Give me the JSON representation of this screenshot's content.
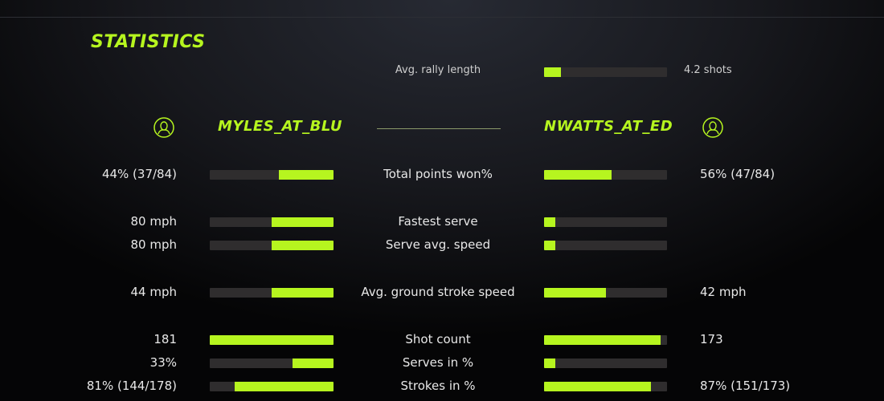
{
  "title": "STATISTICS",
  "accent_color": "#b6f51f",
  "rally": {
    "label": "Avg. rally length",
    "value": "4.2 shots",
    "fill": 0.14
  },
  "players": {
    "left": {
      "name": "MYLES_AT_BLU",
      "icon": "user-icon"
    },
    "right": {
      "name": "NWATTS_AT_ED",
      "icon": "user-icon"
    }
  },
  "stats": [
    {
      "label": "Total points won%",
      "left_value": "44% (37/84)",
      "right_value": "56% (47/84)",
      "left_fill": 0.44,
      "right_fill": 0.55
    },
    {
      "label": "Fastest serve",
      "left_value": "80 mph",
      "right_value": "",
      "left_fill": 0.5,
      "right_fill": 0.09
    },
    {
      "label": "Serve avg. speed",
      "left_value": "80 mph",
      "right_value": "",
      "left_fill": 0.5,
      "right_fill": 0.09
    },
    {
      "label": "Avg. ground stroke speed",
      "left_value": "44 mph",
      "right_value": "42 mph",
      "left_fill": 0.5,
      "right_fill": 0.5
    },
    {
      "label": "Shot count",
      "left_value": "181",
      "right_value": "173",
      "left_fill": 1.0,
      "right_fill": 0.95
    },
    {
      "label": "Serves in %",
      "left_value": "33%",
      "right_value": "",
      "left_fill": 0.33,
      "right_fill": 0.09
    },
    {
      "label": "Strokes in %",
      "left_value": "81% (144/178)",
      "right_value": "87% (151/173)",
      "left_fill": 0.8,
      "right_fill": 0.87
    }
  ]
}
